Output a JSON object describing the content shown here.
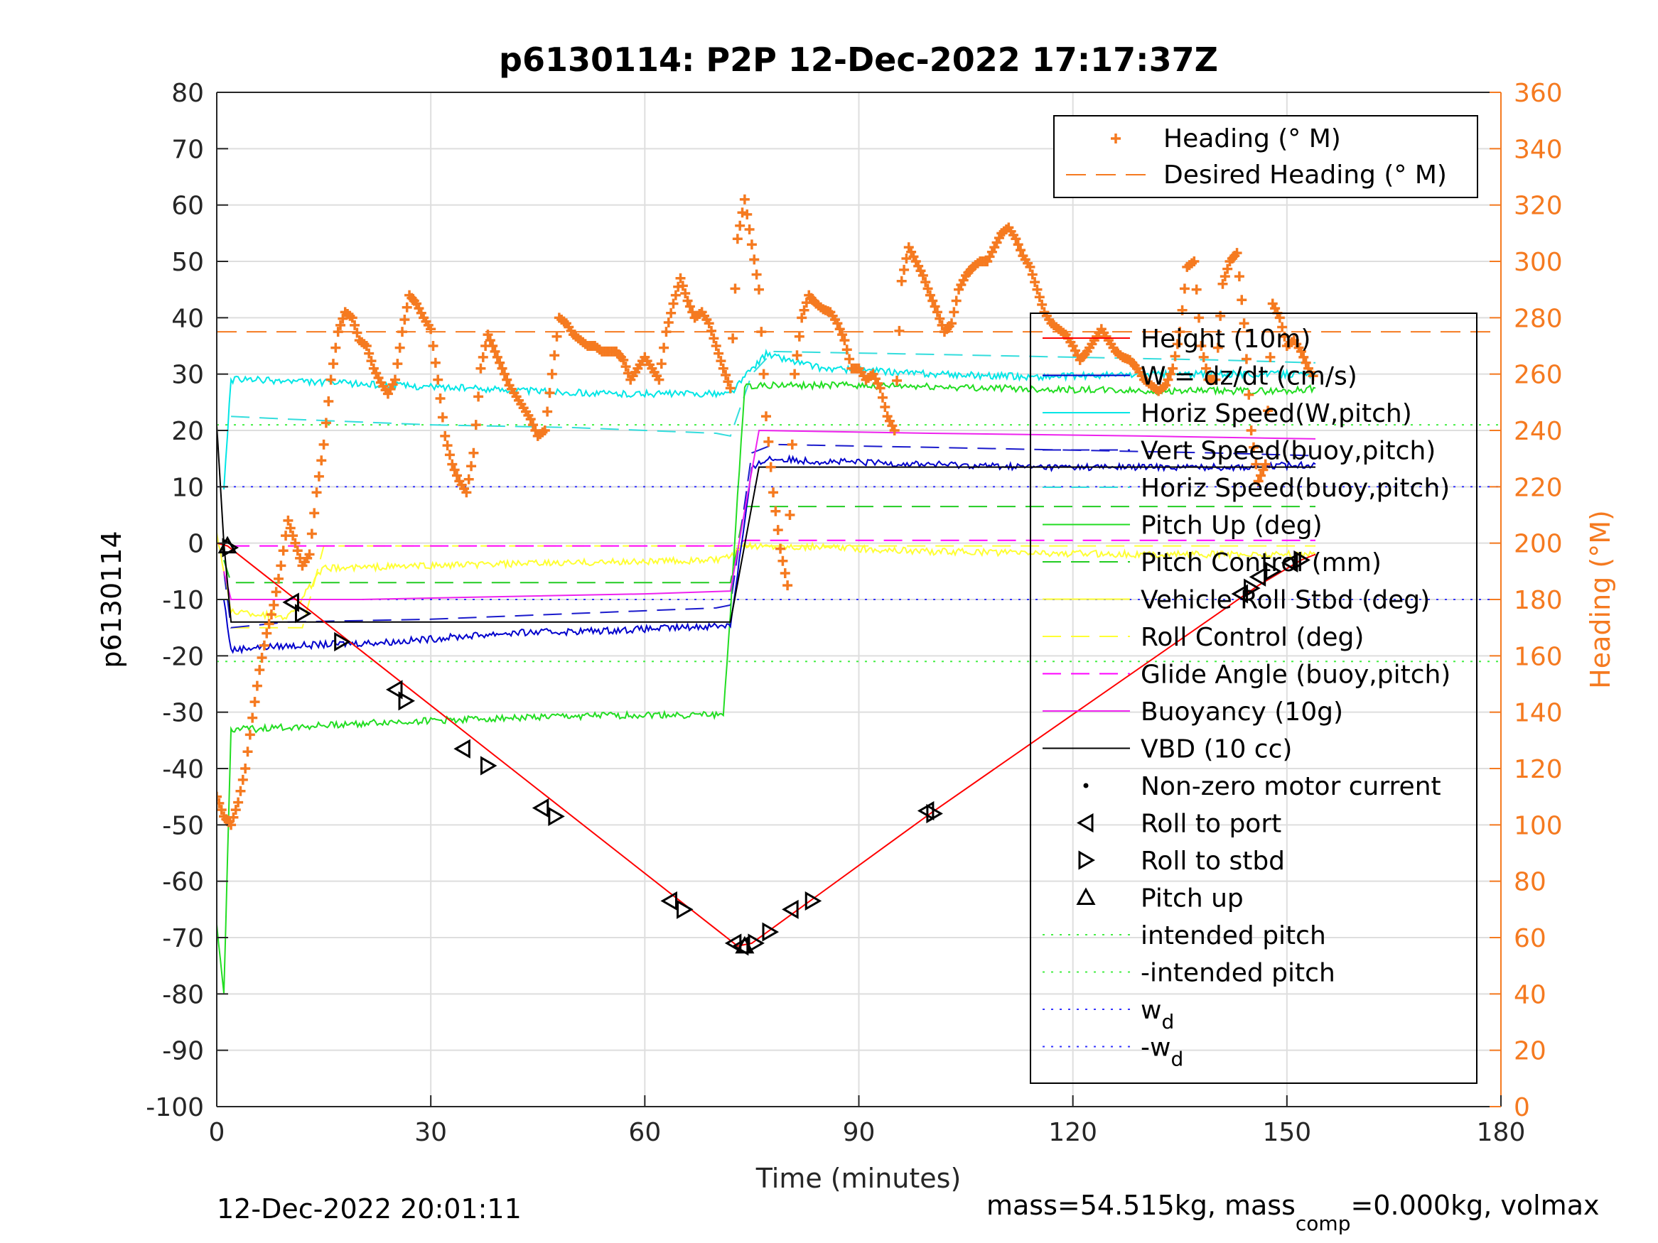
{
  "chart_data": {
    "type": "line",
    "title": "p6130114: P2P 12-Dec-2022 17:17:37Z",
    "xlabel": "Time (minutes)",
    "ylabel_left": "p6130114",
    "ylabel_right": "Heading (°M)",
    "xlim": [
      0,
      180
    ],
    "ylim_left": [
      -100,
      80
    ],
    "ylim_right": [
      0,
      360
    ],
    "xticks": [
      0,
      30,
      60,
      90,
      120,
      150,
      180
    ],
    "yticks_left": [
      -100,
      -90,
      -80,
      -70,
      -60,
      -50,
      -40,
      -30,
      -20,
      -10,
      0,
      10,
      20,
      30,
      40,
      50,
      60,
      70,
      80
    ],
    "yticks_right": [
      0,
      20,
      40,
      60,
      80,
      100,
      120,
      140,
      160,
      180,
      200,
      220,
      240,
      260,
      280,
      300,
      320,
      340,
      360
    ],
    "grid": true,
    "colors": {
      "axis": "#262626",
      "grid": "#dedede",
      "heading": "#f57a20",
      "height": "#ff0000",
      "w": "#0000cc",
      "horiz_speed_pitch": "#00e6e6",
      "vert_speed_buoy": "#1a1acc",
      "horiz_speed_buoy": "#33dddd",
      "pitch_up": "#22dd22",
      "pitch_control": "#22cc22",
      "roll": "#ffff33",
      "roll_control": "#ffff33",
      "glide_angle": "#ff00ff",
      "buoyancy": "#ee22ee",
      "vbd": "#000000",
      "intended_pitch": "#44ee44",
      "wd": "#3333ff"
    },
    "legend_heading": {
      "location": "top-right",
      "entries": [
        "Heading (° M)",
        "Desired Heading (° M)"
      ]
    },
    "legend_main": {
      "location": "right",
      "entries": [
        "Height (10m)",
        "W = dz/dt (cm/s)",
        "Horiz Speed(W,pitch)",
        "Vert Speed(buoy,pitch)",
        "Horiz Speed(buoy,pitch)",
        "Pitch Up (deg)",
        "Pitch Control (mm)",
        "Vehicle Roll Stbd (deg)",
        "Roll Control (deg)",
        "Glide Angle (buoy,pitch)",
        "Buoyancy (10g)",
        "VBD (10 cc)",
        "Non-zero motor current",
        "Roll to port",
        "Roll to stbd",
        "Pitch up",
        "intended pitch",
        "-intended pitch",
        "w_d",
        "-w_d"
      ]
    },
    "desired_heading": 275,
    "series": [
      {
        "name": "Heading (° M)",
        "axis": "right",
        "style": "plus",
        "x": [
          0,
          1,
          2,
          3,
          4,
          5,
          6,
          7,
          8,
          9,
          10,
          11,
          12,
          13,
          14,
          15,
          16,
          17,
          18,
          19,
          20,
          21,
          22,
          23,
          24,
          25,
          26,
          27,
          28,
          29,
          30,
          31,
          32,
          33,
          34,
          35,
          36,
          37,
          38,
          39,
          40,
          41,
          42,
          43,
          44,
          45,
          46,
          47,
          48,
          49,
          50,
          51,
          52,
          53,
          54,
          55,
          56,
          57,
          58,
          59,
          60,
          61,
          62,
          63,
          64,
          65,
          66,
          67,
          68,
          69,
          70,
          71,
          72,
          73,
          74,
          75,
          76,
          77,
          78,
          79,
          80,
          81,
          82,
          83,
          84,
          85,
          86,
          87,
          88,
          89,
          90,
          91,
          92,
          93,
          94,
          95,
          96,
          97,
          98,
          99,
          100,
          101,
          102,
          103,
          104,
          105,
          106,
          107,
          108,
          109,
          110,
          111,
          112,
          113,
          114,
          115,
          116,
          117,
          118,
          119,
          120,
          121,
          122,
          123,
          124,
          125,
          126,
          127,
          128,
          129,
          130,
          131,
          132,
          133,
          134,
          135,
          136,
          137,
          138,
          139,
          140,
          141,
          142,
          143,
          144,
          145,
          146,
          147,
          148,
          149,
          150,
          151,
          152,
          153,
          154
        ],
        "y": [
          110,
          103,
          100,
          108,
          120,
          138,
          155,
          168,
          178,
          192,
          208,
          200,
          192,
          196,
          218,
          235,
          258,
          275,
          282,
          280,
          272,
          270,
          262,
          257,
          253,
          258,
          275,
          288,
          285,
          280,
          276,
          258,
          238,
          228,
          222,
          218,
          232,
          262,
          274,
          268,
          262,
          256,
          252,
          248,
          244,
          238,
          240,
          260,
          280,
          278,
          274,
          272,
          270,
          270,
          268,
          268,
          268,
          265,
          258,
          262,
          266,
          262,
          258,
          275,
          285,
          294,
          286,
          280,
          282,
          278,
          270,
          262,
          255,
          308,
          322,
          306,
          290,
          245,
          218,
          198,
          185,
          260,
          280,
          288,
          285,
          283,
          282,
          278,
          272,
          262,
          262,
          258,
          260,
          255,
          245,
          240,
          293,
          305,
          300,
          295,
          288,
          282,
          275,
          278,
          290,
          295,
          298,
          300,
          300,
          305,
          310,
          312,
          308,
          302,
          298,
          290,
          282,
          278,
          276,
          274,
          270,
          265,
          268,
          272,
          276,
          272,
          268,
          266,
          265,
          262,
          258,
          256,
          254,
          256,
          262,
          275,
          298,
          300,
          270,
          258,
          258,
          292,
          300,
          303,
          278,
          240,
          222,
          228,
          285,
          280,
          270,
          272,
          268,
          262,
          258
        ]
      },
      {
        "name": "Height (10m)",
        "axis": "left",
        "style": "solid",
        "x": [
          0,
          1.5,
          73,
          75,
          100,
          146,
          152,
          154
        ],
        "y": [
          0,
          -0.5,
          -71.5,
          -71,
          -48,
          -7.5,
          -3,
          -2
        ]
      },
      {
        "name": "W = dz/dt (cm/s)",
        "axis": "left",
        "style": "solid-noisy",
        "x": [
          1,
          2,
          5,
          15,
          25,
          40,
          55,
          65,
          72,
          75,
          77,
          85,
          100,
          115,
          130,
          145,
          154
        ],
        "y": [
          -10,
          -19,
          -18.5,
          -18,
          -17.5,
          -16,
          -15.5,
          -15,
          -14.5,
          13,
          15,
          14.5,
          14,
          13.5,
          13.5,
          13.5,
          14
        ]
      },
      {
        "name": "Horiz Speed(W,pitch)",
        "axis": "left",
        "style": "solid-noisy",
        "x": [
          1,
          2,
          5,
          15,
          25,
          35,
          45,
          55,
          65,
          72,
          75,
          77,
          85,
          100,
          115,
          130,
          145,
          154
        ],
        "y": [
          10,
          29,
          29,
          28.5,
          28,
          27.5,
          27,
          26.5,
          26.5,
          26.5,
          31,
          33.5,
          31,
          30,
          29.5,
          30,
          30,
          30
        ]
      },
      {
        "name": "Vert Speed(buoy,pitch)",
        "axis": "left",
        "style": "dashed",
        "x": [
          1,
          2,
          10,
          30,
          50,
          70,
          72,
          75,
          78,
          100,
          120,
          140,
          154
        ],
        "y": [
          -5,
          -15,
          -14,
          -13.5,
          -12.5,
          -11.5,
          -11,
          16,
          17.5,
          17,
          16.5,
          16,
          15.5
        ]
      },
      {
        "name": "Horiz Speed(buoy,pitch)",
        "axis": "left",
        "style": "dashed",
        "x": [
          2,
          10,
          30,
          50,
          70,
          72,
          75,
          78,
          100,
          120,
          140,
          154
        ],
        "y": [
          22.5,
          22,
          21,
          20.5,
          19.5,
          19,
          30,
          34,
          33.5,
          33,
          32.5,
          32
        ]
      },
      {
        "name": "Pitch Up (deg)",
        "axis": "left",
        "style": "solid-noisy",
        "x": [
          0,
          1,
          2,
          5,
          20,
          40,
          60,
          71,
          72,
          74,
          77,
          90,
          110,
          130,
          150,
          154
        ],
        "y": [
          -68,
          -80,
          -33,
          -33,
          -32,
          -31,
          -30.5,
          -30.5,
          -12,
          28,
          28,
          28,
          27.5,
          27,
          27,
          27.5
        ]
      },
      {
        "name": "Pitch Control (mm)",
        "axis": "left",
        "style": "dashed",
        "x": [
          1,
          2,
          72,
          74,
          154
        ],
        "y": [
          -3,
          -7,
          -7,
          6.5,
          6.5
        ]
      },
      {
        "name": "Vehicle Roll Stbd (deg)",
        "axis": "left",
        "style": "solid-noisy",
        "x": [
          0,
          2,
          5,
          10,
          15,
          30,
          50,
          70,
          72,
          74,
          80,
          100,
          130,
          154
        ],
        "y": [
          2,
          -12,
          -12.5,
          -13,
          -4.5,
          -4,
          -3.5,
          -3,
          -2.5,
          -0.5,
          -0.5,
          -1.5,
          -2,
          -2
        ]
      },
      {
        "name": "Roll Control (deg)",
        "axis": "left",
        "style": "dashed",
        "x": [
          1,
          2,
          12,
          15,
          154
        ],
        "y": [
          -5,
          -15,
          -15,
          -0.5,
          -0.5
        ]
      },
      {
        "name": "Glide Angle (buoy,pitch)",
        "axis": "left",
        "style": "dashed",
        "x": [
          2,
          72,
          74,
          154
        ],
        "y": [
          -0.5,
          -0.5,
          0.5,
          0.5
        ]
      },
      {
        "name": "Buoyancy (10g)",
        "axis": "left",
        "style": "solid",
        "x": [
          1,
          2,
          20,
          40,
          60,
          72,
          76,
          100,
          130,
          154
        ],
        "y": [
          -5,
          -10,
          -10,
          -9.5,
          -9,
          -8.5,
          20,
          19.5,
          19,
          18.5
        ]
      },
      {
        "name": "VBD (10 cc)",
        "axis": "left",
        "style": "solid",
        "x": [
          0,
          1,
          2,
          72,
          76,
          154
        ],
        "y": [
          21,
          0,
          -14,
          -14,
          13.5,
          13.5
        ]
      },
      {
        "name": "intended pitch",
        "axis": "left",
        "style": "dotted",
        "x": [
          0,
          180
        ],
        "y": [
          21,
          21
        ]
      },
      {
        "name": "-intended pitch",
        "axis": "left",
        "style": "dotted",
        "x": [
          0,
          180
        ],
        "y": [
          -21,
          -21
        ]
      },
      {
        "name": "w_d",
        "axis": "left",
        "style": "dotted",
        "x": [
          0,
          180
        ],
        "y": [
          10,
          10
        ]
      },
      {
        "name": "-w_d",
        "axis": "left",
        "style": "dotted",
        "x": [
          0,
          180
        ],
        "y": [
          -10,
          -10
        ]
      }
    ],
    "markers": {
      "pitch_up": {
        "x": [
          1.5,
          74
        ],
        "y": [
          -0.5,
          -71.5
        ]
      },
      "roll_to_port": {
        "x": [
          10.5,
          25,
          34.5,
          45.5,
          63.5,
          72.5,
          73.5,
          80.5,
          99.5,
          143.5,
          146,
          150.5
        ],
        "y": [
          -10.5,
          -26,
          -36.5,
          -47,
          -63.5,
          -71,
          -71.5,
          -65,
          -47.5,
          -9,
          -6,
          -3.5
        ]
      },
      "roll_to_stbd": {
        "x": [
          1.8,
          12,
          17.5,
          26.5,
          38,
          47.5,
          65.5,
          75.5,
          77.5,
          83.5,
          100.5,
          145,
          148,
          152
        ],
        "y": [
          -0.8,
          -12.5,
          -17.5,
          -28,
          -39.5,
          -48.5,
          -65,
          -71,
          -69,
          -63.5,
          -48,
          -8,
          -5,
          -3
        ]
      }
    },
    "footer_left": "12-Dec-2022 20:01:11",
    "footer_right": {
      "pre": "mass=54.515kg, mass",
      "sub": "comp",
      "post": "=0.000kg, volmax"
    }
  }
}
